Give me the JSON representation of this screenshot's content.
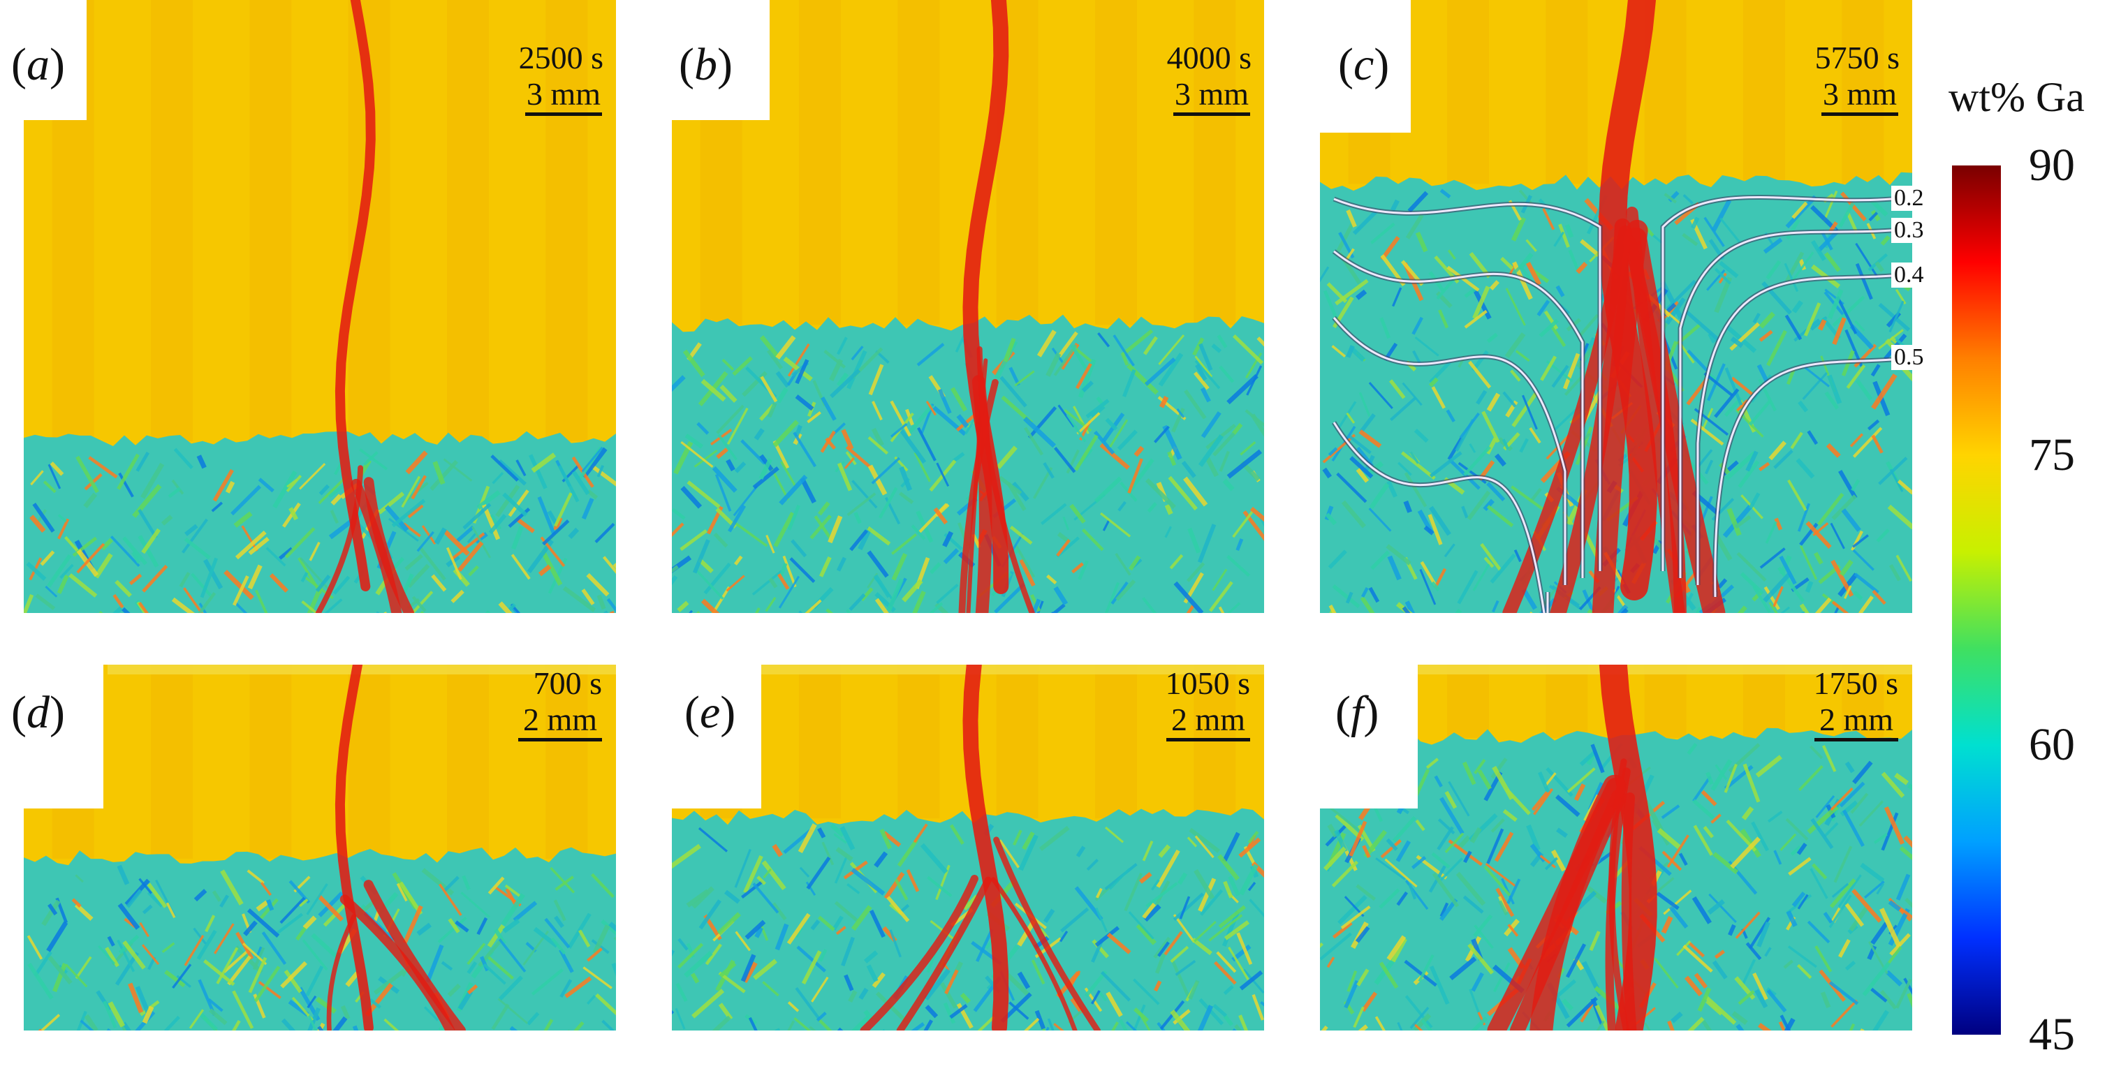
{
  "colorbar": {
    "title": "wt% Ga",
    "ticks": [
      "90",
      "75",
      "60",
      "45"
    ],
    "tick_values": [
      90,
      75,
      60,
      45
    ],
    "range": [
      45,
      90
    ],
    "gradient_stops": [
      "#7a0000",
      "#ff0000",
      "#ff8000",
      "#ffd400",
      "#c8f000",
      "#40e060",
      "#00e0d0",
      "#00a0ff",
      "#0030ff",
      "#000080"
    ]
  },
  "panels": [
    {
      "label": "a",
      "time": "2500 s",
      "scale": "3 mm",
      "interface_level": 0.72,
      "plume": "thin",
      "snapshot": "first"
    },
    {
      "label": "b",
      "time": "4000 s",
      "scale": "3 mm",
      "interface_level": 0.53,
      "plume": "medium",
      "snapshot": "second"
    },
    {
      "label": "c",
      "time": "5750 s",
      "scale": "3 mm",
      "interface_level": 0.3,
      "plume": "wide",
      "snapshot": "third",
      "contours": [
        "0.2",
        "0.3",
        "0.4",
        "0.5"
      ]
    },
    {
      "label": "d",
      "time": "700 s",
      "scale": "2 mm",
      "interface_level": 0.53,
      "plume": "thin",
      "snapshot": "first"
    },
    {
      "label": "e",
      "time": "1050 s",
      "scale": "2 mm",
      "interface_level": 0.42,
      "plume": "medium",
      "snapshot": "second"
    },
    {
      "label": "f",
      "time": "1750 s",
      "scale": "2 mm",
      "interface_level": 0.2,
      "plume": "wide",
      "snapshot": "third"
    }
  ],
  "colors": {
    "liquid": "#f6c700",
    "liquid_band": "#f2b600",
    "solid_mush": "#3ec6b4",
    "enriched_channel": "#e21c12",
    "contour_line": "#f0e8ff"
  }
}
